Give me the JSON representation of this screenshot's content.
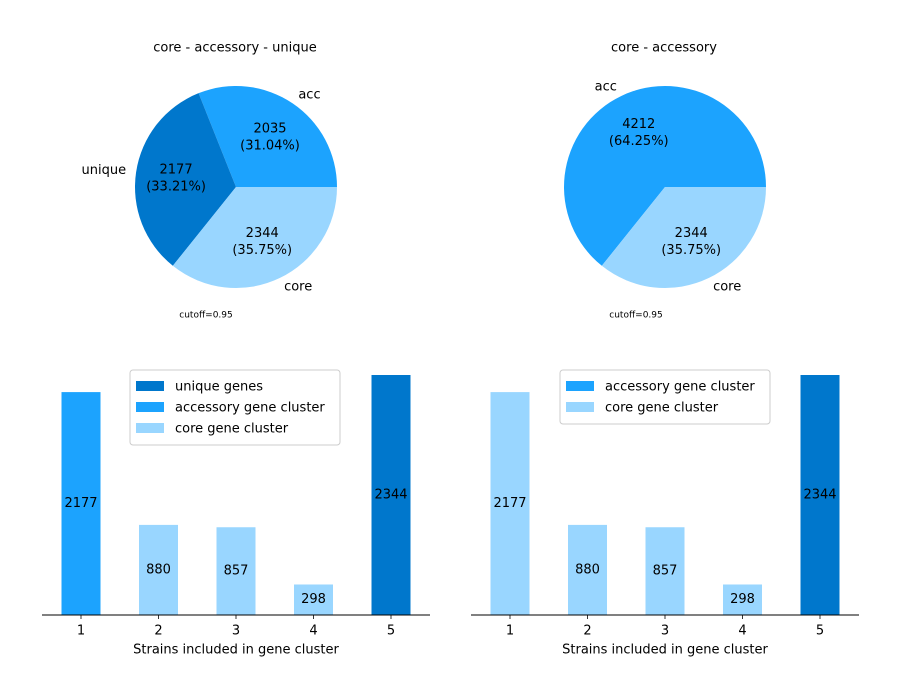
{
  "colors": {
    "dark_blue": "#0077cc",
    "mid_blue": "#1ca3fe",
    "light_blue": "#99d6ff"
  },
  "chart_data": [
    {
      "type": "pie",
      "title": "core - accessory - unique",
      "slices": [
        {
          "label": "acc",
          "value": 2035,
          "percent": "31.04%",
          "color": "#1ca3fe"
        },
        {
          "label": "unique",
          "value": 2177,
          "percent": "33.21%",
          "color": "#0077cc"
        },
        {
          "label": "core",
          "value": 2344,
          "percent": "35.75%",
          "color": "#99d6ff"
        }
      ],
      "note": "cutoff=0.95"
    },
    {
      "type": "pie",
      "title": "core - accessory",
      "slices": [
        {
          "label": "acc",
          "value": 4212,
          "percent": "64.25%",
          "color": "#1ca3fe"
        },
        {
          "label": "core",
          "value": 2344,
          "percent": "35.75%",
          "color": "#99d6ff"
        }
      ],
      "note": "cutoff=0.95"
    },
    {
      "type": "bar",
      "categories": [
        "1",
        "2",
        "3",
        "4",
        "5"
      ],
      "values": [
        2177,
        880,
        857,
        298,
        2344
      ],
      "bar_colors": [
        "#1ca3fe",
        "#99d6ff",
        "#99d6ff",
        "#99d6ff",
        "#0077cc"
      ],
      "xlabel": "Strains included in gene cluster",
      "ylim": [
        0,
        2344
      ],
      "legend": [
        {
          "label": "unique genes",
          "color": "#0077cc"
        },
        {
          "label": "accessory gene cluster",
          "color": "#1ca3fe"
        },
        {
          "label": "core gene cluster",
          "color": "#99d6ff"
        }
      ],
      "legend_position": "top-center"
    },
    {
      "type": "bar",
      "categories": [
        "1",
        "2",
        "3",
        "4",
        "5"
      ],
      "values": [
        2177,
        880,
        857,
        298,
        2344
      ],
      "bar_colors": [
        "#99d6ff",
        "#99d6ff",
        "#99d6ff",
        "#99d6ff",
        "#0077cc"
      ],
      "xlabel": "Strains included in gene cluster",
      "ylim": [
        0,
        2344
      ],
      "legend": [
        {
          "label": "accessory gene cluster",
          "color": "#1ca3fe"
        },
        {
          "label": "core gene cluster",
          "color": "#99d6ff"
        }
      ],
      "legend_position": "top-center"
    }
  ]
}
